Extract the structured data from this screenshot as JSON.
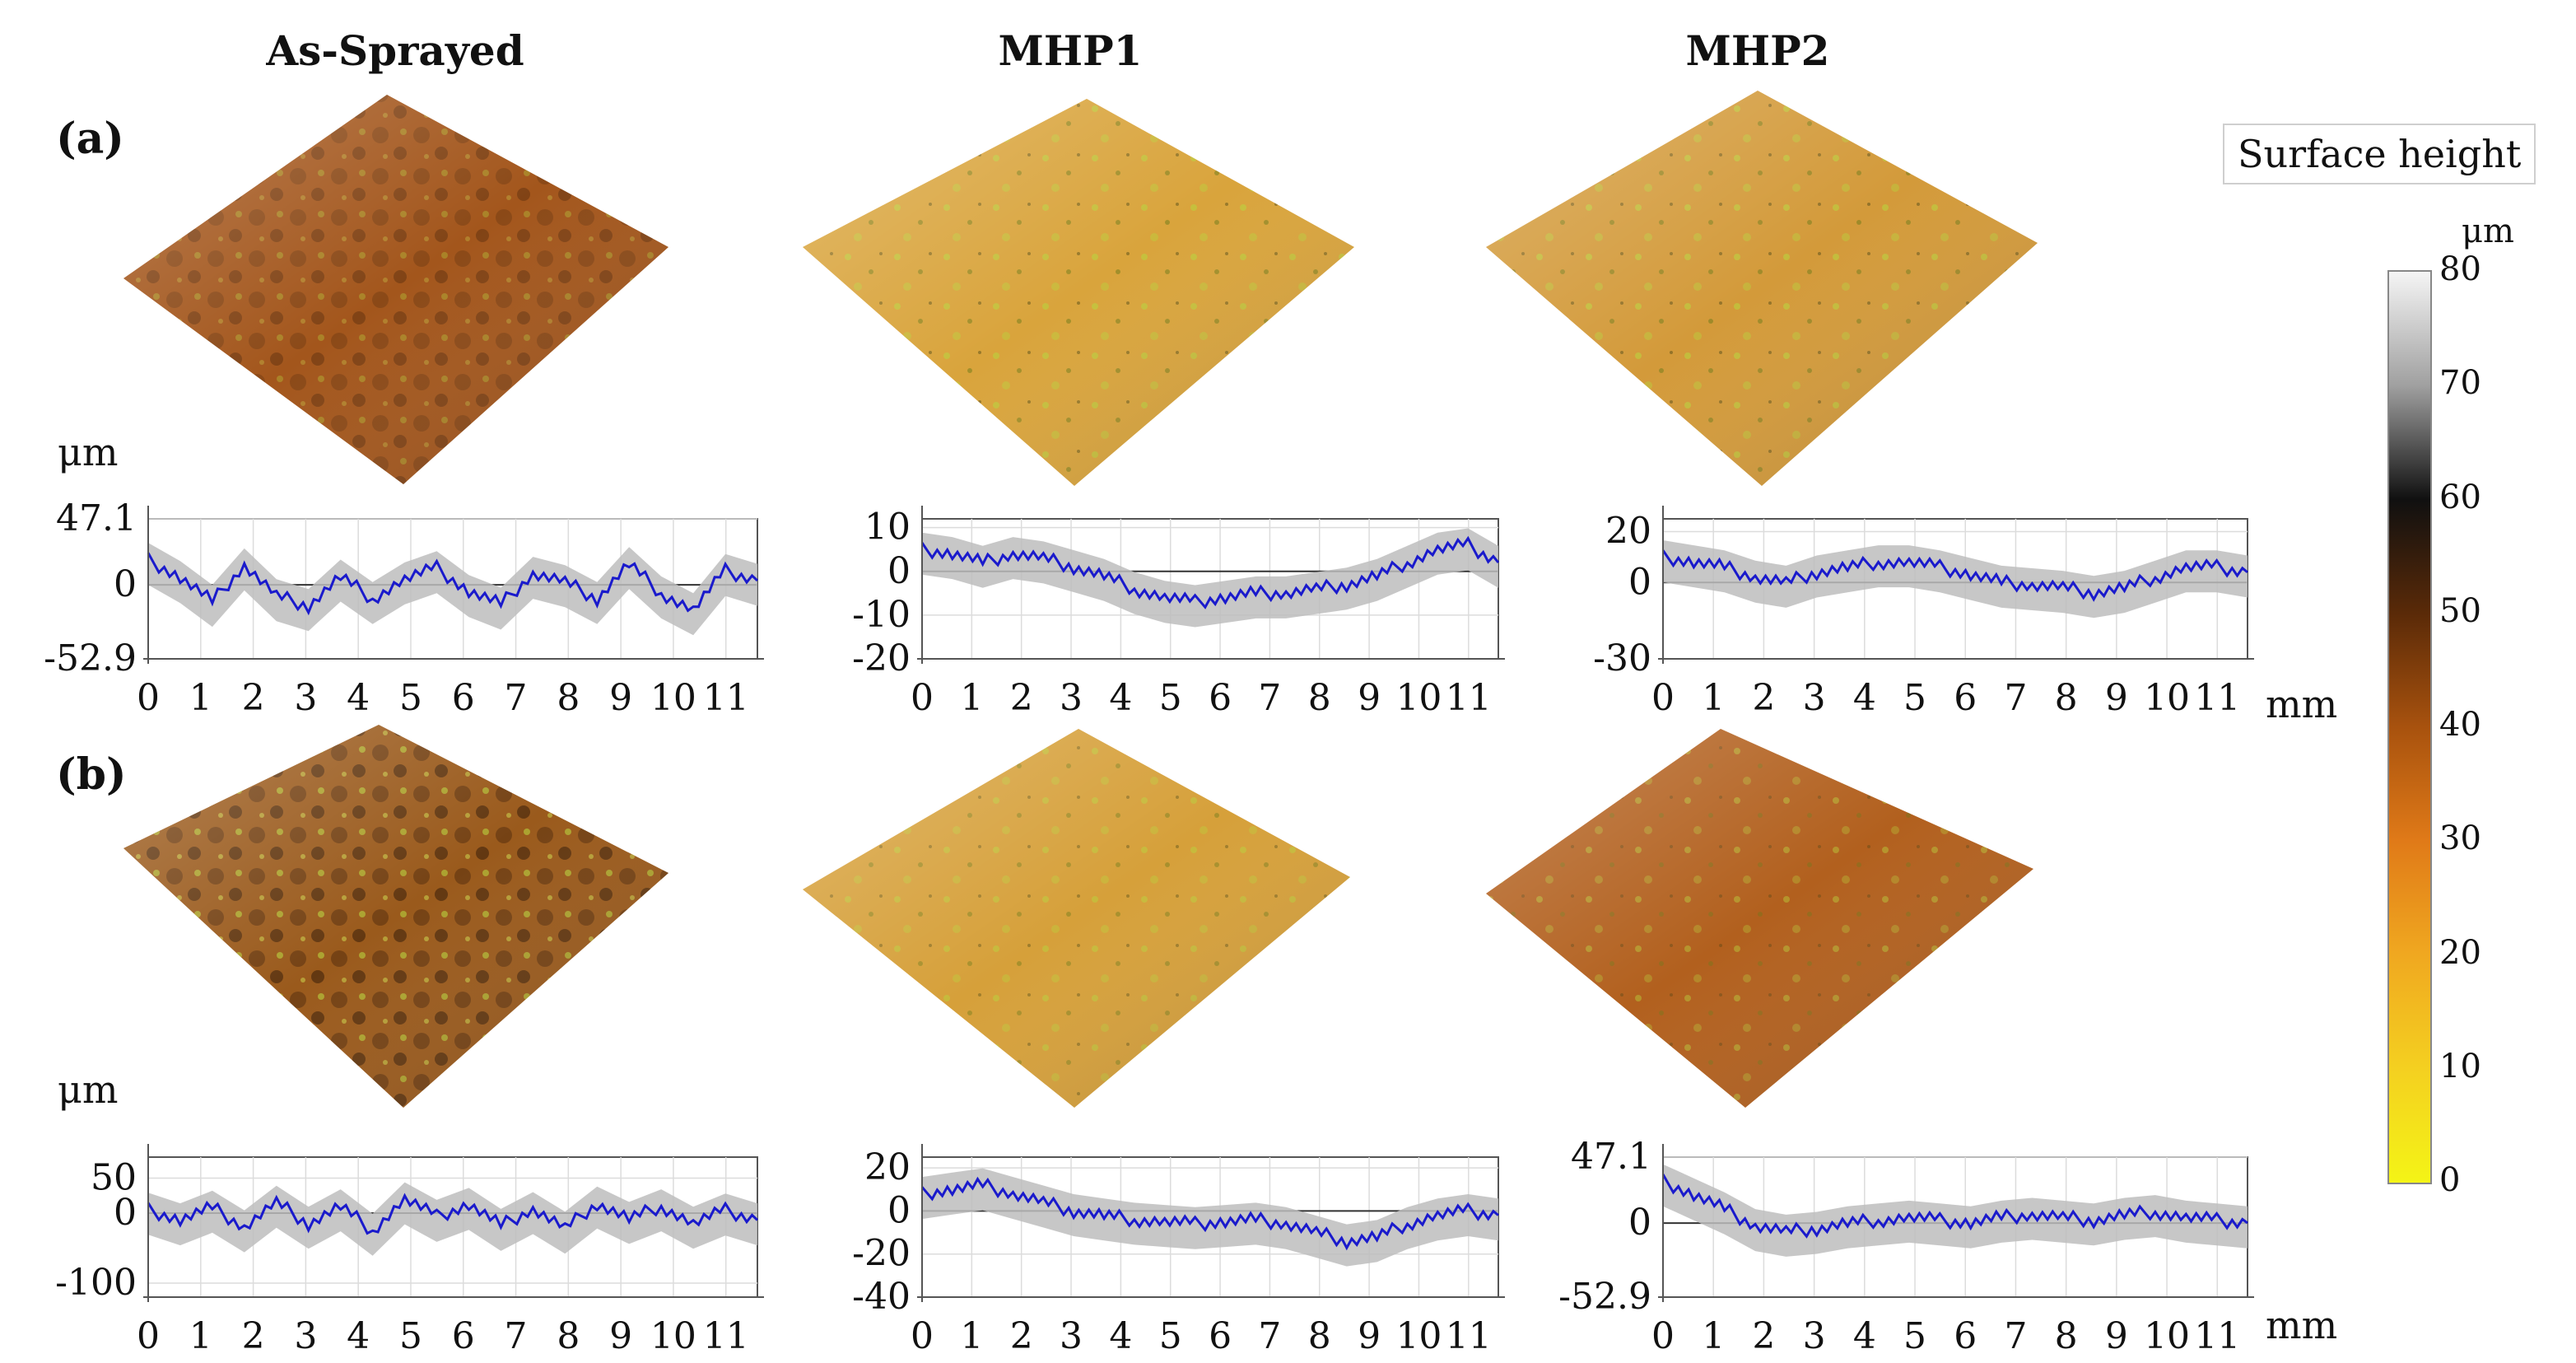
{
  "figure": {
    "column_titles": [
      "As-Sprayed",
      "MHP1",
      "MHP2"
    ],
    "row_labels": [
      "(a)",
      "(b)"
    ],
    "unit_y": "μm",
    "unit_x": "mm",
    "legend": {
      "title": "Surface height",
      "unit": "μm",
      "ticks": [
        "80",
        "70",
        "60",
        "50",
        "40",
        "30",
        "20",
        "10",
        "0"
      ],
      "colors": [
        "#f5f5f5",
        "#a0a0a0",
        "#101010",
        "#5a2a08",
        "#a8520e",
        "#e07a18",
        "#f0a820",
        "#f4d020",
        "#f4f416"
      ]
    },
    "surface_colors": {
      "a_as_sprayed": "#a3561c",
      "a_mhp1": "#d9a43c",
      "a_mhp2": "#d39a3a",
      "b_as_sprayed": "#9a5a1c",
      "b_mhp1": "#d6a03a",
      "b_mhp2": "#b2601e",
      "inclusion": "#b8d43c"
    }
  },
  "chart_data": [
    {
      "type": "line",
      "id": "a-as-sprayed",
      "ylim": [
        -52.9,
        47.1
      ],
      "yticks": [
        "47.1",
        "0",
        "-52.9"
      ],
      "xticks": [
        "0",
        "1",
        "2",
        "3",
        "4",
        "5",
        "6",
        "7",
        "8",
        "9",
        "10",
        "11"
      ],
      "xlim": [
        0,
        11.6
      ],
      "series": [
        {
          "values": [
            18,
            5,
            -12,
            14,
            -8,
            -15,
            6,
            -10,
            4,
            12,
            -5,
            -14,
            8,
            2,
            -10,
            15,
            -6,
            -18,
            10,
            3
          ]
        }
      ]
    },
    {
      "type": "line",
      "id": "a-mhp1",
      "ylim": [
        -20,
        12
      ],
      "yticks": [
        "10",
        "0",
        "-10",
        "-20"
      ],
      "xticks": [
        "0",
        "1",
        "2",
        "3",
        "4",
        "5",
        "6",
        "7",
        "8",
        "9",
        "10",
        "11"
      ],
      "xlim": [
        0,
        11.6
      ],
      "series": [
        {
          "values": [
            5,
            4,
            2,
            4,
            3,
            1,
            -1,
            -4,
            -6,
            -7,
            -6,
            -5,
            -5,
            -4,
            -3,
            -1,
            2,
            5,
            6,
            2
          ]
        }
      ]
    },
    {
      "type": "line",
      "id": "a-mhp2",
      "ylim": [
        -30,
        25
      ],
      "yticks": [
        "20",
        "0",
        "-30"
      ],
      "xticks": [
        "0",
        "1",
        "2",
        "3",
        "4",
        "5",
        "6",
        "7",
        "8",
        "9",
        "10",
        "11"
      ],
      "xlim": [
        0,
        11.6
      ],
      "series": [
        {
          "values": [
            10,
            8,
            6,
            2,
            0,
            4,
            6,
            8,
            8,
            6,
            3,
            0,
            -1,
            -2,
            -4,
            -2,
            2,
            6,
            6,
            4
          ]
        }
      ]
    },
    {
      "type": "line",
      "id": "b-as-sprayed",
      "ylim": [
        -120,
        80
      ],
      "yticks": [
        "50",
        "0",
        "-100"
      ],
      "xticks": [
        "0",
        "1",
        "2",
        "3",
        "4",
        "5",
        "6",
        "7",
        "8",
        "9",
        "10",
        "11"
      ],
      "xlim": [
        0,
        11.6
      ],
      "series": [
        {
          "values": [
            5,
            -10,
            8,
            -20,
            15,
            -15,
            10,
            -25,
            20,
            -5,
            12,
            -18,
            6,
            -22,
            14,
            -8,
            10,
            -15,
            4,
            -10
          ]
        }
      ]
    },
    {
      "type": "line",
      "id": "b-mhp1",
      "ylim": [
        -40,
        25
      ],
      "yticks": [
        "20",
        "0",
        "-20",
        "-40"
      ],
      "xticks": [
        "0",
        "1",
        "2",
        "3",
        "4",
        "5",
        "6",
        "7",
        "8",
        "9",
        "10",
        "11"
      ],
      "xlim": [
        0,
        11.6
      ],
      "series": [
        {
          "values": [
            8,
            10,
            12,
            8,
            4,
            0,
            -2,
            -4,
            -5,
            -6,
            -5,
            -4,
            -6,
            -10,
            -14,
            -12,
            -6,
            -2,
            0,
            -2
          ]
        }
      ]
    },
    {
      "type": "line",
      "id": "b-mhp2",
      "ylim": [
        -52.9,
        47.1
      ],
      "yticks": [
        "47.1",
        "0",
        "-52.9"
      ],
      "xticks": [
        "0",
        "1",
        "2",
        "3",
        "4",
        "5",
        "6",
        "7",
        "8",
        "9",
        "10",
        "11"
      ],
      "xlim": [
        0,
        11.6
      ],
      "series": [
        {
          "values": [
            30,
            20,
            10,
            -2,
            -6,
            -4,
            0,
            2,
            4,
            2,
            0,
            4,
            6,
            4,
            2,
            6,
            8,
            4,
            2,
            0
          ]
        }
      ]
    }
  ]
}
